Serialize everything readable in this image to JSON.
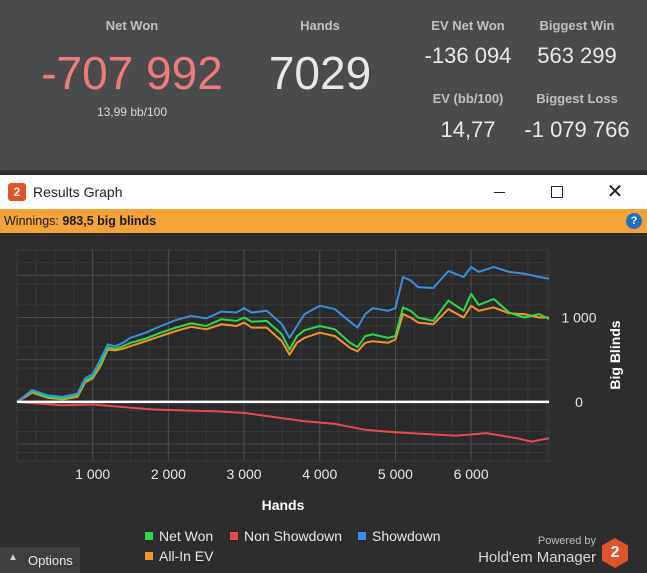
{
  "stats": {
    "net_won": {
      "label": "Net Won",
      "value": "-707 992",
      "sub": "13,99 bb/100"
    },
    "hands": {
      "label": "Hands",
      "value": "7029"
    },
    "ev_net_won": {
      "label": "EV Net Won",
      "value": "-136 094"
    },
    "biggest_win": {
      "label": "Biggest Win",
      "value": "563 299"
    },
    "ev_bb100": {
      "label": "EV (bb/100)",
      "value": "14,77"
    },
    "biggest_loss": {
      "label": "Biggest Loss",
      "value": "-1 079 766"
    }
  },
  "window": {
    "title": "Results Graph",
    "app_logo": "2",
    "icons": {
      "minimize": "minimize-icon",
      "maximize": "maximize-icon",
      "close": "close-icon",
      "help": "help-icon"
    }
  },
  "winnings_bar": {
    "label": "Winnings:",
    "value": "983,5 big blinds",
    "help": "?"
  },
  "legend": [
    {
      "label": "Net Won",
      "color": "#2fd84a"
    },
    {
      "label": "Non Showdown",
      "color": "#e84b4b"
    },
    {
      "label": "Showdown",
      "color": "#3a8fe0"
    },
    {
      "label": "All-In EV",
      "color": "#f2932a"
    }
  ],
  "footer": {
    "powered_by": "Powered by",
    "brand": "Hold'em Manager",
    "brand_logo": "2",
    "options_label": "Options",
    "options_icon": "triangle-up-icon"
  },
  "chart_data": {
    "type": "line",
    "xlabel": "Hands",
    "ylabel": "Big Blinds",
    "xlim": [
      0,
      7029
    ],
    "ylim": [
      -700,
      1800
    ],
    "x_ticks": [
      1000,
      2000,
      3000,
      4000,
      5000,
      6000
    ],
    "x_tick_labels": [
      "1 000",
      "2 000",
      "3 000",
      "4 000",
      "5 000",
      "6 000"
    ],
    "y_ticks": [
      0,
      1000
    ],
    "y_tick_labels": [
      "0",
      "1 000"
    ],
    "grid": true,
    "legend_position": "bottom",
    "series": [
      {
        "name": "Net Won",
        "color": "#2fd84a",
        "x": [
          0,
          200,
          400,
          600,
          800,
          900,
          1000,
          1100,
          1200,
          1300,
          1400,
          1500,
          1700,
          1900,
          2100,
          2300,
          2500,
          2700,
          2900,
          3000,
          3100,
          3300,
          3500,
          3600,
          3700,
          3800,
          4000,
          4200,
          4400,
          4500,
          4600,
          4700,
          4900,
          5000,
          5100,
          5200,
          5300,
          5500,
          5700,
          5900,
          6000,
          6100,
          6300,
          6500,
          6700,
          6900,
          7029
        ],
        "y": [
          0,
          130,
          60,
          40,
          80,
          250,
          300,
          450,
          650,
          630,
          660,
          700,
          750,
          820,
          880,
          930,
          900,
          980,
          960,
          1000,
          950,
          960,
          800,
          620,
          780,
          850,
          900,
          860,
          700,
          650,
          780,
          800,
          760,
          780,
          1120,
          1080,
          1000,
          960,
          1200,
          1080,
          1280,
          1150,
          1220,
          1060,
          1000,
          1040,
          983
        ]
      },
      {
        "name": "Non Showdown",
        "color": "#e84b4b",
        "x": [
          0,
          300,
          600,
          1000,
          1400,
          1800,
          2200,
          2600,
          3000,
          3400,
          3800,
          4200,
          4600,
          5000,
          5400,
          5800,
          6200,
          6600,
          6800,
          7029
        ],
        "y": [
          0,
          -20,
          -40,
          -30,
          -60,
          -90,
          -100,
          -110,
          -130,
          -180,
          -230,
          -260,
          -330,
          -360,
          -380,
          -400,
          -370,
          -430,
          -470,
          -430
        ]
      },
      {
        "name": "Showdown",
        "color": "#3a8fe0",
        "x": [
          0,
          200,
          400,
          600,
          800,
          900,
          1000,
          1100,
          1200,
          1300,
          1400,
          1500,
          1700,
          1900,
          2100,
          2300,
          2500,
          2700,
          2900,
          3000,
          3100,
          3300,
          3500,
          3600,
          3700,
          3800,
          4000,
          4200,
          4400,
          4500,
          4600,
          4700,
          4900,
          5000,
          5100,
          5200,
          5300,
          5500,
          5700,
          5900,
          6000,
          6100,
          6300,
          6500,
          6700,
          6900,
          7029
        ],
        "y": [
          0,
          140,
          80,
          60,
          100,
          280,
          330,
          500,
          680,
          660,
          700,
          760,
          820,
          900,
          970,
          1020,
          990,
          1070,
          1060,
          1110,
          1060,
          1080,
          920,
          760,
          900,
          1040,
          1140,
          1100,
          950,
          880,
          1040,
          1110,
          1080,
          1110,
          1480,
          1440,
          1360,
          1350,
          1550,
          1480,
          1600,
          1540,
          1600,
          1540,
          1520,
          1480,
          1460
        ]
      },
      {
        "name": "All-In EV",
        "color": "#f2932a",
        "x": [
          0,
          200,
          400,
          600,
          800,
          900,
          1000,
          1100,
          1200,
          1300,
          1400,
          1500,
          1700,
          1900,
          2100,
          2300,
          2500,
          2700,
          2900,
          3000,
          3100,
          3300,
          3500,
          3600,
          3700,
          3800,
          4000,
          4200,
          4400,
          4500,
          4600,
          4700,
          4900,
          5000,
          5100,
          5200,
          5300,
          5500,
          5700,
          5900,
          6000,
          6100,
          6300,
          6500,
          6700,
          6900,
          7029
        ],
        "y": [
          0,
          110,
          50,
          30,
          60,
          230,
          280,
          420,
          620,
          610,
          630,
          660,
          720,
          780,
          840,
          890,
          860,
          920,
          900,
          940,
          880,
          880,
          720,
          560,
          700,
          760,
          820,
          780,
          640,
          600,
          700,
          720,
          700,
          740,
          1040,
          1000,
          940,
          920,
          1100,
          1000,
          1140,
          1080,
          1120,
          1050,
          1040,
          1000,
          1000
        ]
      }
    ]
  }
}
